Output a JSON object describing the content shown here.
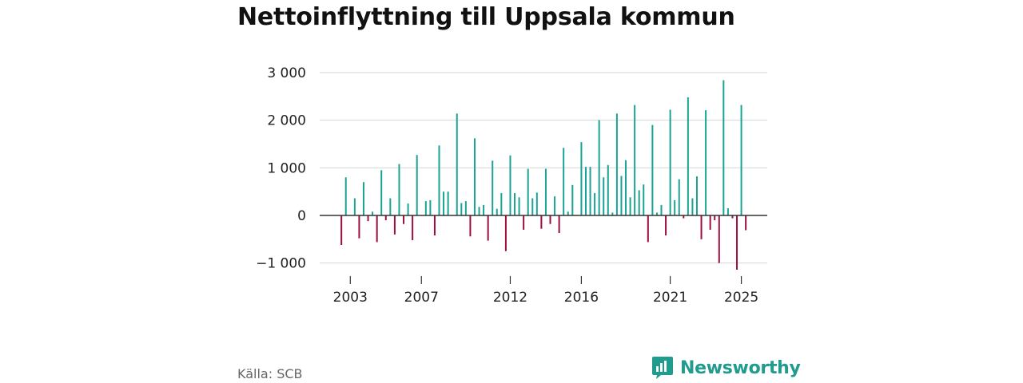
{
  "title": "Nettoinflyttning till Uppsala kommun",
  "source": "Källa: SCB",
  "brand": "Newsworthy",
  "colors": {
    "positive": "#1aa394",
    "negative": "#9c0f3c",
    "brand": "#1f9c8d"
  },
  "chart_data": {
    "type": "bar",
    "title": "Nettoinflyttning till Uppsala kommun",
    "xlabel": "",
    "ylabel": "",
    "ylim": [
      -1200,
      3000
    ],
    "y_ticks": [
      3000,
      2000,
      1000,
      0,
      -1000
    ],
    "y_tick_labels": [
      "3 000",
      "2 000",
      "1 000",
      "0",
      "−1 000"
    ],
    "x_tick_labels": [
      "2003",
      "2007",
      "2012",
      "2016",
      "2021",
      "2025"
    ],
    "x_tick_periods": [
      5,
      21,
      41,
      57,
      77,
      93
    ],
    "frequency": "quarterly",
    "start": "2002-Q1",
    "grid": true,
    "values": [
      0,
      0,
      0,
      -620,
      800,
      0,
      360,
      -480,
      700,
      -120,
      80,
      -560,
      950,
      -100,
      360,
      -400,
      1080,
      -180,
      250,
      -520,
      1270,
      0,
      300,
      320,
      -420,
      1470,
      500,
      500,
      0,
      2140,
      260,
      300,
      -440,
      1620,
      180,
      220,
      -530,
      1150,
      140,
      470,
      -750,
      1260,
      470,
      380,
      -300,
      980,
      360,
      480,
      -280,
      980,
      -180,
      400,
      -370,
      1420,
      80,
      640,
      0,
      1540,
      1020,
      1020,
      470,
      2000,
      800,
      1060,
      60,
      2140,
      830,
      1160,
      380,
      2320,
      530,
      650,
      -560,
      1900,
      60,
      220,
      -420,
      2220,
      320,
      760,
      -60,
      2480,
      360,
      820,
      -500,
      2210,
      -300,
      -100,
      -1000,
      2840,
      150,
      -60,
      -1140,
      2320,
      -310
    ]
  }
}
